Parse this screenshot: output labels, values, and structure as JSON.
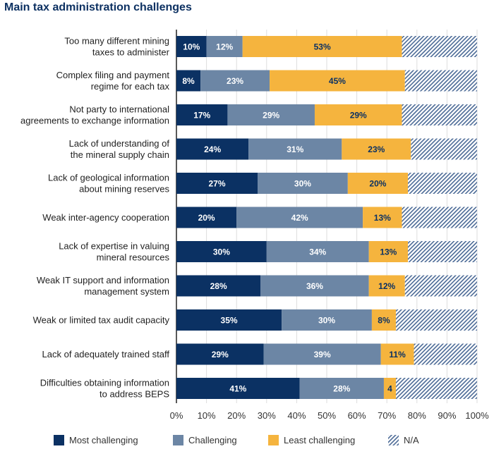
{
  "chart_data": {
    "type": "bar",
    "orientation": "horizontal",
    "stacked": true,
    "title": "Main tax administration challenges",
    "categories": [
      [
        "Too many different mining",
        "taxes to administer"
      ],
      [
        "Complex filing and payment",
        "regime for each tax"
      ],
      [
        "Not party to international",
        "agreements to exchange information"
      ],
      [
        "Lack of understanding of",
        "the mineral supply chain"
      ],
      [
        "Lack of geological information",
        "about mining reserves"
      ],
      [
        "Weak inter-agency cooperation"
      ],
      [
        "Lack of expertise in valuing",
        "mineral resources"
      ],
      [
        "Weak IT support and information",
        "management system"
      ],
      [
        "Weak or limited tax audit capacity"
      ],
      [
        "Lack of adequately trained staff"
      ],
      [
        "Difficulties obtaining information",
        "to address BEPS"
      ]
    ],
    "series": [
      {
        "name": "Most challenging",
        "color": "#0b3163",
        "values": [
          10,
          8,
          17,
          24,
          27,
          20,
          30,
          28,
          35,
          29,
          41
        ],
        "labels": [
          "10%",
          "8%",
          "17%",
          "24%",
          "27%",
          "20%",
          "30%",
          "28%",
          "35%",
          "29%",
          "41%"
        ]
      },
      {
        "name": "Challenging",
        "color": "#6c86a5",
        "values": [
          12,
          23,
          29,
          31,
          30,
          42,
          34,
          36,
          30,
          39,
          28
        ],
        "labels": [
          "12%",
          "23%",
          "29%",
          "31%",
          "30%",
          "42%",
          "34%",
          "36%",
          "30%",
          "39%",
          "28%"
        ]
      },
      {
        "name": "Least challenging",
        "color": "#f5b43e",
        "values": [
          53,
          45,
          29,
          23,
          20,
          13,
          13,
          12,
          8,
          11,
          4
        ],
        "labels": [
          "53%",
          "45%",
          "29%",
          "23%",
          "20%",
          "13%",
          "13%",
          "12%",
          "8%",
          "11%",
          "4"
        ]
      },
      {
        "name": "N/A",
        "color": "hatched",
        "values": [
          25,
          24,
          25,
          22,
          23,
          25,
          23,
          24,
          27,
          21,
          27
        ],
        "labels": []
      }
    ],
    "xlim": [
      0,
      100
    ],
    "xticks": [
      "0%",
      "10%",
      "20%",
      "30%",
      "40%",
      "50%",
      "60%",
      "70%",
      "80%",
      "90%",
      "100%"
    ],
    "grid": true,
    "legend": "bottom"
  }
}
